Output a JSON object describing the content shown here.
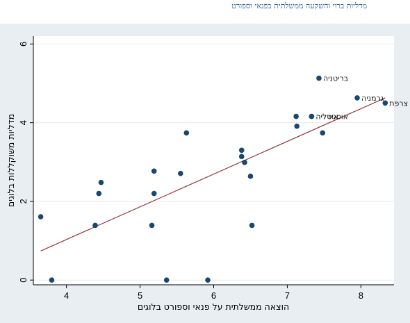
{
  "header": {
    "title": "מדליות ברוי והשקעה ממשלתית בפנאי וספורט"
  },
  "colors": {
    "background_band": "#e9eef2",
    "plot_background": "#ffffff",
    "marker": "#1a476f",
    "fit_line": "#90353b",
    "title": "#2f5f9e"
  },
  "chart_data": {
    "type": "scatter",
    "title": "",
    "xlabel": "הוצאה ממשלתית על פנאי וספורט בלוגים",
    "ylabel": "מדליות משוקללות בלוגים",
    "xlim": [
      3.55,
      8.45
    ],
    "ylim": [
      -0.12,
      6.2
    ],
    "xticks": [
      4,
      5,
      6,
      7,
      8
    ],
    "yticks": [
      0,
      2,
      4,
      6
    ],
    "grid": true,
    "legend": "none",
    "points": [
      {
        "x": 3.65,
        "y": 1.61,
        "label": ""
      },
      {
        "x": 3.8,
        "y": 0.0,
        "label": ""
      },
      {
        "x": 4.39,
        "y": 1.39,
        "label": ""
      },
      {
        "x": 4.44,
        "y": 2.2,
        "label": ""
      },
      {
        "x": 4.47,
        "y": 2.48,
        "label": ""
      },
      {
        "x": 5.16,
        "y": 1.39,
        "label": ""
      },
      {
        "x": 5.19,
        "y": 2.77,
        "label": ""
      },
      {
        "x": 5.19,
        "y": 2.2,
        "label": ""
      },
      {
        "x": 5.36,
        "y": 0.0,
        "label": ""
      },
      {
        "x": 5.55,
        "y": 2.71,
        "label": ""
      },
      {
        "x": 5.63,
        "y": 3.74,
        "label": ""
      },
      {
        "x": 5.92,
        "y": 0.0,
        "label": ""
      },
      {
        "x": 6.38,
        "y": 3.3,
        "label": ""
      },
      {
        "x": 6.38,
        "y": 3.14,
        "label": ""
      },
      {
        "x": 6.42,
        "y": 2.99,
        "label": ""
      },
      {
        "x": 6.5,
        "y": 2.64,
        "label": ""
      },
      {
        "x": 6.52,
        "y": 1.39,
        "label": ""
      },
      {
        "x": 7.12,
        "y": 4.16,
        "label": ""
      },
      {
        "x": 7.13,
        "y": 3.91,
        "label": ""
      },
      {
        "x": 7.33,
        "y": 4.16,
        "label": "איטליה"
      },
      {
        "x": 7.33,
        "y": 4.16,
        "label": "אוסטרליה"
      },
      {
        "x": 7.43,
        "y": 5.13,
        "label": "בריטניה"
      },
      {
        "x": 7.48,
        "y": 3.74,
        "label": ""
      },
      {
        "x": 7.95,
        "y": 4.63,
        "label": "גרמניה"
      },
      {
        "x": 8.33,
        "y": 4.5,
        "label": "צרפת"
      }
    ],
    "fit_line": {
      "x": [
        3.65,
        8.33
      ],
      "y": [
        0.74,
        4.63
      ]
    }
  }
}
